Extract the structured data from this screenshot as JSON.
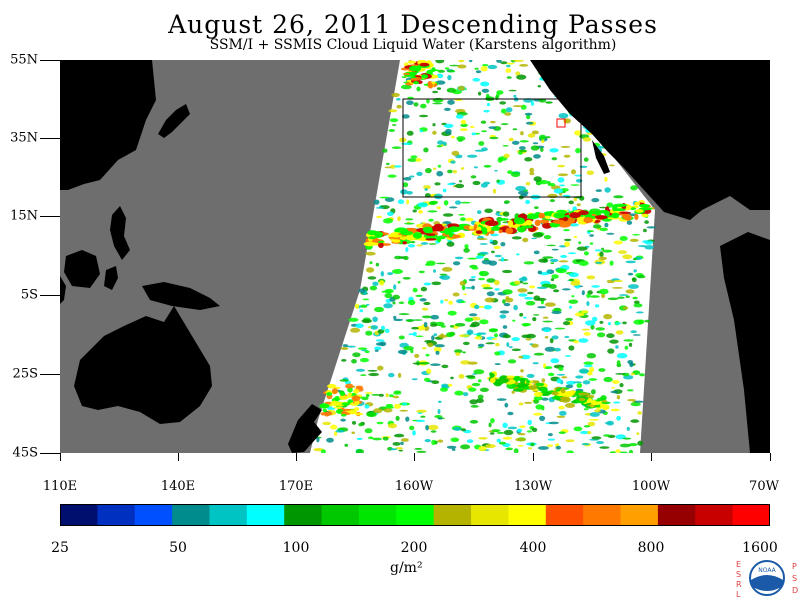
{
  "header": {
    "title": "August 26, 2011  Descending Passes",
    "subtitle": "SSM/I + SSMIS Cloud Liquid Water (Karstens algorithm)"
  },
  "map": {
    "lat_labels": [
      "55N",
      "35N",
      "15N",
      "5S",
      "25S",
      "45S"
    ],
    "lon_labels": [
      "110E",
      "140E",
      "170E",
      "160W",
      "130W",
      "100W",
      "70W"
    ],
    "colors": {
      "land": "#000000",
      "no_data": "#6e6e6e",
      "ocean_clear": "#ffffff",
      "box_outline": "#000000",
      "marker_outline": "#ff0000"
    }
  },
  "colorbar": {
    "tick_labels": [
      "25",
      "50",
      "100",
      "200",
      "400",
      "800",
      "1600"
    ],
    "colors": [
      "#000f6e",
      "#0030bf",
      "#0050ff",
      "#008c8c",
      "#00c4c4",
      "#00ffff",
      "#009600",
      "#00c800",
      "#00e600",
      "#00ff00",
      "#b4b400",
      "#e6e600",
      "#ffff00",
      "#ff5000",
      "#ff7800",
      "#ffa000",
      "#960000",
      "#c80000",
      "#ff0000"
    ],
    "units": "g/m²"
  },
  "logo": {
    "left_letters": [
      "E",
      "S",
      "R",
      "L"
    ],
    "right_letters": [
      "P",
      "S",
      "D"
    ],
    "emblem_text": "NOAA"
  }
}
